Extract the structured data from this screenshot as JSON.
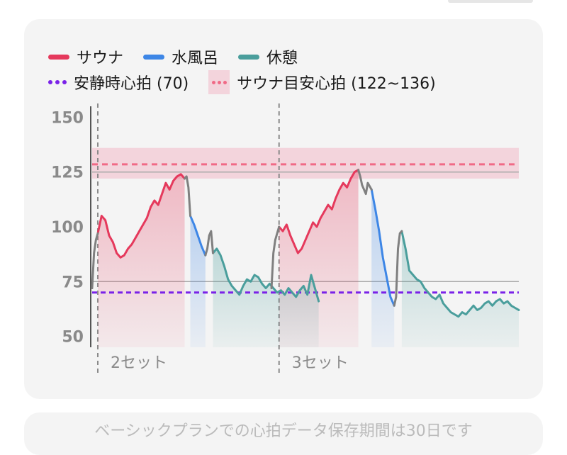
{
  "colors": {
    "sauna": "#e5395c",
    "cold_bath": "#3d86e6",
    "rest": "#4a9e9c",
    "transition": "#808080",
    "resting_hr": "#7a22e8",
    "target_band_fill": "#f3d4dc",
    "target_band_line": "#f06a86",
    "grid": "#aaaaaa",
    "card_bg": "#f4f4f4",
    "axis_text": "#8a8a8a"
  },
  "legend": {
    "sauna": "サウナ",
    "cold_bath": "水風呂",
    "rest": "休憩",
    "resting_hr": "安静時心拍 (70)",
    "target_hr": "サウナ目安心拍 (122~136)"
  },
  "chart_data": {
    "type": "line",
    "title": "",
    "xlabel": "",
    "ylabel": "",
    "ylim": [
      45,
      155
    ],
    "yticks": [
      50,
      75,
      100,
      125,
      150
    ],
    "x_unit": "minutes",
    "xlim": [
      0,
      113
    ],
    "resting_hr": 70,
    "target_range": [
      122,
      136
    ],
    "grid_lines_at": [
      75,
      125
    ],
    "set_markers": [
      {
        "x": 1.5,
        "label": "2セット"
      },
      {
        "x": 49.5,
        "label": "3セット"
      }
    ],
    "series": [
      {
        "name": "サウナ",
        "segments": [
          [
            [
              1.5,
              97
            ],
            [
              2.5,
              105
            ],
            [
              3.5,
              103
            ],
            [
              4.5,
              96
            ],
            [
              5.5,
              93
            ],
            [
              6.5,
              88
            ],
            [
              7.5,
              86
            ],
            [
              8.5,
              87
            ],
            [
              9.5,
              90
            ],
            [
              10.5,
              92
            ],
            [
              11.5,
              95
            ],
            [
              12.5,
              98
            ],
            [
              13.5,
              101
            ],
            [
              14.5,
              104
            ],
            [
              15.5,
              109
            ],
            [
              16.5,
              112
            ],
            [
              17.5,
              110
            ],
            [
              18.5,
              115
            ],
            [
              19.5,
              120
            ],
            [
              20.5,
              117
            ],
            [
              21.5,
              121
            ],
            [
              22.5,
              123
            ],
            [
              23.5,
              124
            ],
            [
              24.5,
              122
            ]
          ],
          [
            [
              49.5,
              100
            ],
            [
              50.5,
              98
            ],
            [
              51.5,
              101
            ],
            [
              52.5,
              96
            ],
            [
              53.5,
              92
            ],
            [
              54.5,
              88
            ],
            [
              55.5,
              90
            ],
            [
              56.5,
              94
            ],
            [
              57.5,
              98
            ],
            [
              58.5,
              102
            ],
            [
              59.5,
              100
            ],
            [
              60.5,
              104
            ],
            [
              61.5,
              107
            ],
            [
              62.5,
              110
            ],
            [
              63.5,
              108
            ],
            [
              64.5,
              113
            ],
            [
              65.5,
              117
            ],
            [
              66.5,
              120
            ],
            [
              67.5,
              118
            ],
            [
              68.5,
              122
            ],
            [
              69.5,
              125
            ],
            [
              70.5,
              126
            ]
          ]
        ]
      },
      {
        "name": "水風呂",
        "segments": [
          [
            [
              26,
              105
            ],
            [
              27,
              101
            ],
            [
              28,
              96
            ],
            [
              29,
              91
            ],
            [
              30,
              87
            ]
          ],
          [
            [
              74,
              117
            ],
            [
              75,
              108
            ],
            [
              76,
              98
            ],
            [
              77,
              86
            ],
            [
              78,
              77
            ],
            [
              79,
              68
            ],
            [
              80,
              64
            ]
          ]
        ]
      },
      {
        "name": "休憩",
        "segments": [
          [
            [
              32,
              88
            ],
            [
              33,
              90
            ],
            [
              34,
              87
            ],
            [
              35,
              82
            ],
            [
              36,
              76
            ],
            [
              37,
              73
            ],
            [
              38,
              71
            ],
            [
              39,
              69
            ],
            [
              40,
              73
            ],
            [
              41,
              76
            ],
            [
              42,
              75
            ],
            [
              43,
              78
            ],
            [
              44,
              77
            ],
            [
              45,
              74
            ],
            [
              46,
              72
            ],
            [
              47,
              74
            ],
            [
              48,
              72
            ],
            [
              49,
              70
            ],
            [
              50,
              71
            ],
            [
              51,
              69
            ],
            [
              52,
              72
            ],
            [
              53,
              70
            ],
            [
              54,
              68
            ],
            [
              55,
              71
            ],
            [
              56,
              73
            ],
            [
              57,
              69
            ],
            [
              58,
              78
            ],
            [
              59,
              72
            ],
            [
              60,
              66
            ]
          ],
          [
            [
              82,
              98
            ],
            [
              83,
              90
            ],
            [
              84,
              80
            ],
            [
              85,
              78
            ],
            [
              86,
              76
            ],
            [
              87,
              75
            ],
            [
              88,
              72
            ],
            [
              89,
              70
            ],
            [
              90,
              68
            ],
            [
              91,
              67
            ],
            [
              92,
              69
            ],
            [
              93,
              65
            ],
            [
              94,
              63
            ],
            [
              95,
              61
            ],
            [
              96,
              60
            ],
            [
              97,
              59
            ],
            [
              98,
              61
            ],
            [
              99,
              60
            ],
            [
              100,
              62
            ],
            [
              101,
              64
            ],
            [
              102,
              62
            ],
            [
              103,
              63
            ],
            [
              104,
              65
            ],
            [
              105,
              66
            ],
            [
              106,
              64
            ],
            [
              107,
              66
            ],
            [
              108,
              67
            ],
            [
              109,
              65
            ],
            [
              110,
              66
            ],
            [
              111,
              64
            ],
            [
              112,
              63
            ],
            [
              113,
              62
            ]
          ]
        ]
      },
      {
        "name": "",
        "segments": [
          [
            [
              0,
              72
            ],
            [
              0.5,
              88
            ],
            [
              1,
              94
            ],
            [
              1.5,
              97
            ]
          ],
          [
            [
              24.5,
              122
            ],
            [
              25,
              123
            ],
            [
              25.5,
              118
            ],
            [
              26,
              105
            ]
          ],
          [
            [
              30,
              87
            ],
            [
              30.5,
              90
            ],
            [
              31,
              96
            ],
            [
              31.5,
              98
            ],
            [
              32,
              88
            ]
          ],
          [
            [
              47.5,
              72
            ],
            [
              48,
              88
            ],
            [
              48.5,
              94
            ],
            [
              49.5,
              100
            ]
          ],
          [
            [
              70.5,
              126
            ],
            [
              71,
              123
            ],
            [
              71.5,
              119
            ],
            [
              72.5,
              115
            ],
            [
              73,
              120
            ],
            [
              74,
              117
            ]
          ],
          [
            [
              80,
              64
            ],
            [
              80.5,
              68
            ],
            [
              81,
              90
            ],
            [
              81.5,
              97
            ],
            [
              82,
              98
            ]
          ]
        ]
      }
    ]
  },
  "x_labels": {
    "set2": "2セット",
    "set3": "3セット"
  },
  "footer_note": "ベーシックプランでの心拍データ保存期間は30日です"
}
